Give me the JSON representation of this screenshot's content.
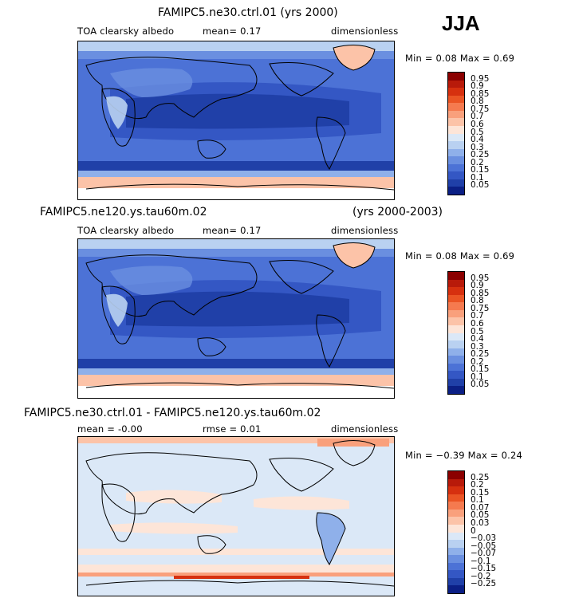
{
  "season": "JJA",
  "panels": [
    {
      "title": "FAMIPC5.ne30.ctrl.01 (yrs 2000)",
      "title_right": "",
      "variable": "TOA clearsky albedo",
      "stat1": "mean=    0.17",
      "stat2": "",
      "units": "dimensionless",
      "minmax": "Min =    0.08  Max =    0.69",
      "scale": "albedo"
    },
    {
      "title": "FAMIPC5.ne120.ys.tau60m.02",
      "title_right": "(yrs 2000-2003)",
      "variable": "TOA clearsky albedo",
      "stat1": "mean=    0.17",
      "stat2": "",
      "units": "dimensionless",
      "minmax": "Min =    0.08  Max =    0.69",
      "scale": "albedo"
    },
    {
      "title": "FAMIPC5.ne30.ctrl.01 - FAMIPC5.ne120.ys.tau60m.02",
      "title_right": "",
      "variable": "mean =   -0.00",
      "stat1": "",
      "stat2": "rmse =    0.01",
      "units": "dimensionless",
      "minmax": "Min =  −0.39  Max =    0.24",
      "scale": "diff"
    }
  ],
  "colorbars": {
    "albedo": {
      "labels": [
        "0.95",
        "0.9",
        "0.85",
        "0.8",
        "0.75",
        "0.7",
        "0.6",
        "0.5",
        "0.4",
        "0.3",
        "0.25",
        "0.2",
        "0.15",
        "0.1",
        "0.05"
      ],
      "colors": [
        "#8b0000",
        "#b81a0a",
        "#d6300f",
        "#ea5424",
        "#f57a4f",
        "#f9a07c",
        "#fcc3a8",
        "#fde5d8",
        "#dbe8f7",
        "#b9d1f1",
        "#8fb0ea",
        "#6a8fe0",
        "#4c72d6",
        "#3457c4",
        "#2040a8",
        "#0b1f85"
      ]
    },
    "diff": {
      "labels": [
        "0.25",
        "0.2",
        "0.15",
        "0.1",
        "0.07",
        "0.05",
        "0.03",
        "0",
        "−0.03",
        "−0.05",
        "−0.07",
        "−0.1",
        "−0.15",
        "−0.2",
        "−0.25"
      ],
      "colors": [
        "#8b0000",
        "#b81a0a",
        "#d6300f",
        "#ea5424",
        "#f57a4f",
        "#f9a07c",
        "#fcc3a8",
        "#fde5d8",
        "#dbe8f7",
        "#b9d1f1",
        "#8fb0ea",
        "#6a8fe0",
        "#4c72d6",
        "#3457c4",
        "#2040a8",
        "#0b1f85"
      ]
    }
  }
}
